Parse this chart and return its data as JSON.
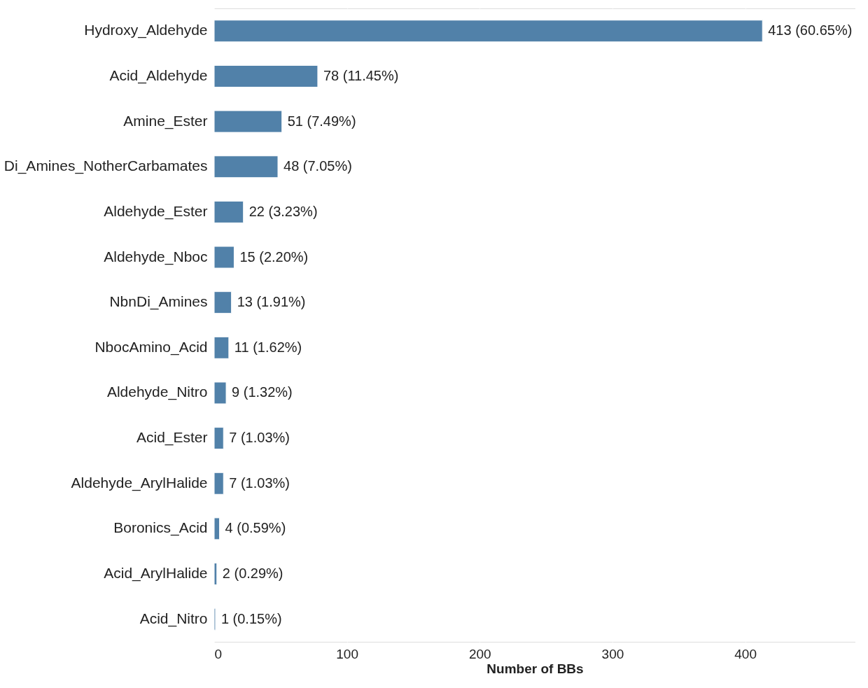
{
  "chart_data": {
    "type": "bar",
    "orientation": "horizontal",
    "xlabel": "Number of BBs",
    "categories": [
      "Hydroxy_Aldehyde",
      "Acid_Aldehyde",
      "Amine_Ester",
      "Di_Amines_NotherCarbamates",
      "Aldehyde_Ester",
      "Aldehyde_Nboc",
      "NbnDi_Amines",
      "NbocAmino_Acid",
      "Aldehyde_Nitro",
      "Acid_Ester",
      "Aldehyde_ArylHalide",
      "Boronics_Acid",
      "Acid_ArylHalide",
      "Acid_Nitro"
    ],
    "values": [
      413,
      78,
      51,
      48,
      22,
      15,
      13,
      11,
      9,
      7,
      7,
      4,
      2,
      1
    ],
    "value_labels": [
      "413 (60.65%)",
      "78 (11.45%)",
      "51 (7.49%)",
      "48 (7.05%)",
      "22 (3.23%)",
      "15 (2.20%)",
      "13 (1.91%)",
      "11 (1.62%)",
      "9 (1.32%)",
      "7 (1.03%)",
      "7 (1.03%)",
      "4 (0.59%)",
      "2 (0.29%)",
      "1 (0.15%)"
    ],
    "color": "#5181a9",
    "xlim": [
      0,
      483
    ],
    "xticks": [
      0,
      100,
      200,
      300,
      400
    ],
    "grid": "x"
  }
}
